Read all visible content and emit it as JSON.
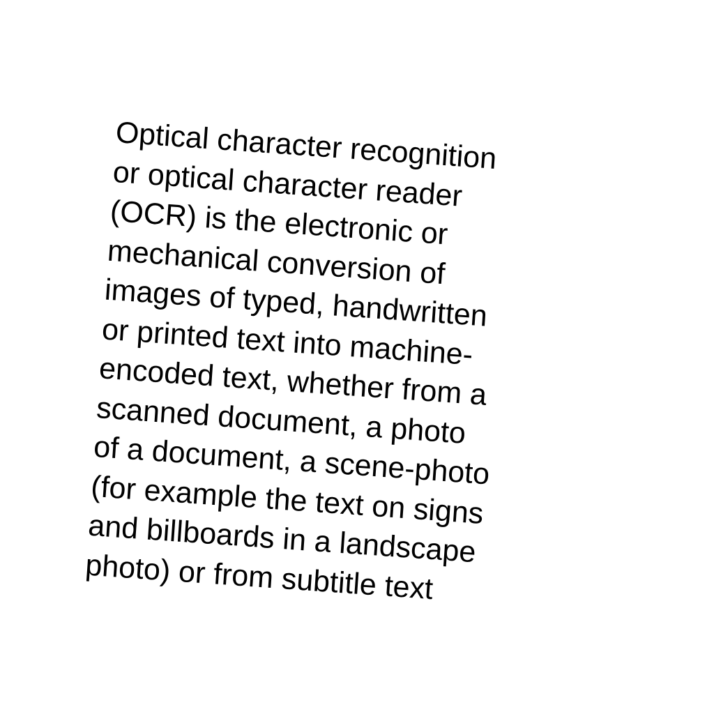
{
  "document": {
    "lines": [
      "Optical character recognition",
      "or optical character reader",
      "(OCR) is the electronic or",
      "mechanical conversion of",
      "images of typed, handwritten",
      "or printed text into machine-",
      "encoded text, whether from a",
      "scanned document, a photo",
      "of a document, a scene-photo",
      "(for example the text on signs",
      "and billboards in a landscape",
      "photo) or from subtitle text"
    ]
  }
}
